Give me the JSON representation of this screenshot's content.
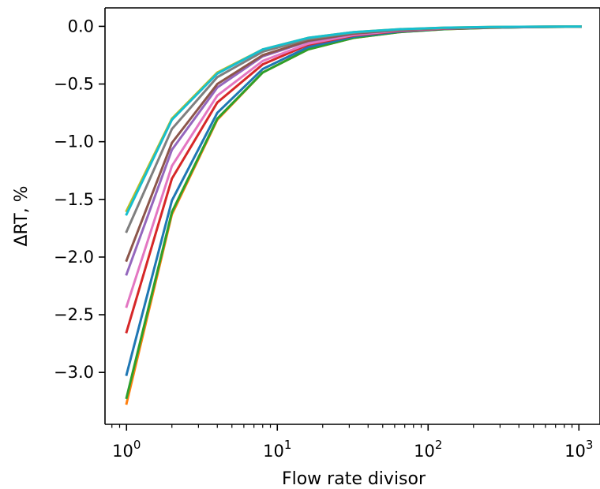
{
  "chart_data": {
    "type": "line",
    "title": "",
    "xlabel": "Flow rate divisor",
    "ylabel": "ΔRT, %",
    "xscale": "log",
    "xlim": [
      0.72,
      1380
    ],
    "ylim": [
      -3.45,
      0.16
    ],
    "grid": false,
    "legend": "none",
    "x": [
      1,
      2,
      4,
      8,
      16,
      32,
      64,
      128,
      256,
      512,
      1024
    ],
    "x_ticks": [
      {
        "value": 1,
        "base": "10",
        "exp": "0"
      },
      {
        "value": 10,
        "base": "10",
        "exp": "1"
      },
      {
        "value": 100,
        "base": "10",
        "exp": "2"
      },
      {
        "value": 1000,
        "base": "10",
        "exp": "3"
      }
    ],
    "y_ticks": [
      {
        "value": 0.0,
        "label": "0.0"
      },
      {
        "value": -0.5,
        "label": "−0.5"
      },
      {
        "value": -1.0,
        "label": "−1.0"
      },
      {
        "value": -1.5,
        "label": "−1.5"
      },
      {
        "value": -2.0,
        "label": "−2.0"
      },
      {
        "value": -2.5,
        "label": "−2.5"
      },
      {
        "value": -3.0,
        "label": "−3.0"
      }
    ],
    "series": [
      {
        "color": "#ff7f0e",
        "values": [
          -3.27,
          -1.63,
          -0.81,
          -0.4,
          -0.2,
          -0.1,
          -0.05,
          -0.025,
          -0.013,
          -0.006,
          -0.003
        ]
      },
      {
        "color": "#2ca02c",
        "values": [
          -3.22,
          -1.61,
          -0.8,
          -0.4,
          -0.2,
          -0.1,
          -0.05,
          -0.025,
          -0.013,
          -0.006,
          -0.003
        ]
      },
      {
        "color": "#1f77b4",
        "values": [
          -3.02,
          -1.51,
          -0.75,
          -0.37,
          -0.18,
          -0.09,
          -0.045,
          -0.022,
          -0.011,
          -0.006,
          -0.003
        ]
      },
      {
        "color": "#d62728",
        "values": [
          -2.65,
          -1.32,
          -0.66,
          -0.33,
          -0.16,
          -0.08,
          -0.04,
          -0.02,
          -0.01,
          -0.005,
          -0.003
        ]
      },
      {
        "color": "#e377c2",
        "values": [
          -2.43,
          -1.21,
          -0.6,
          -0.3,
          -0.15,
          -0.075,
          -0.037,
          -0.018,
          -0.009,
          -0.005,
          -0.002
        ]
      },
      {
        "color": "#9467bd",
        "values": [
          -2.15,
          -1.07,
          -0.53,
          -0.26,
          -0.13,
          -0.065,
          -0.033,
          -0.016,
          -0.008,
          -0.004,
          -0.002
        ]
      },
      {
        "color": "#8c564b",
        "values": [
          -2.03,
          -1.01,
          -0.5,
          -0.25,
          -0.125,
          -0.062,
          -0.031,
          -0.015,
          -0.008,
          -0.004,
          -0.002
        ]
      },
      {
        "color": "#7f7f7f",
        "values": [
          -1.78,
          -0.89,
          -0.44,
          -0.22,
          -0.11,
          -0.055,
          -0.027,
          -0.014,
          -0.007,
          -0.003,
          -0.002
        ]
      },
      {
        "color": "#bcbd22",
        "values": [
          -1.6,
          -0.8,
          -0.4,
          -0.2,
          -0.1,
          -0.05,
          -0.025,
          -0.012,
          -0.006,
          -0.003,
          -0.002
        ]
      },
      {
        "color": "#17becf",
        "values": [
          -1.63,
          -0.81,
          -0.41,
          -0.2,
          -0.1,
          -0.05,
          -0.025,
          -0.012,
          -0.006,
          -0.003,
          -0.002
        ]
      }
    ]
  }
}
